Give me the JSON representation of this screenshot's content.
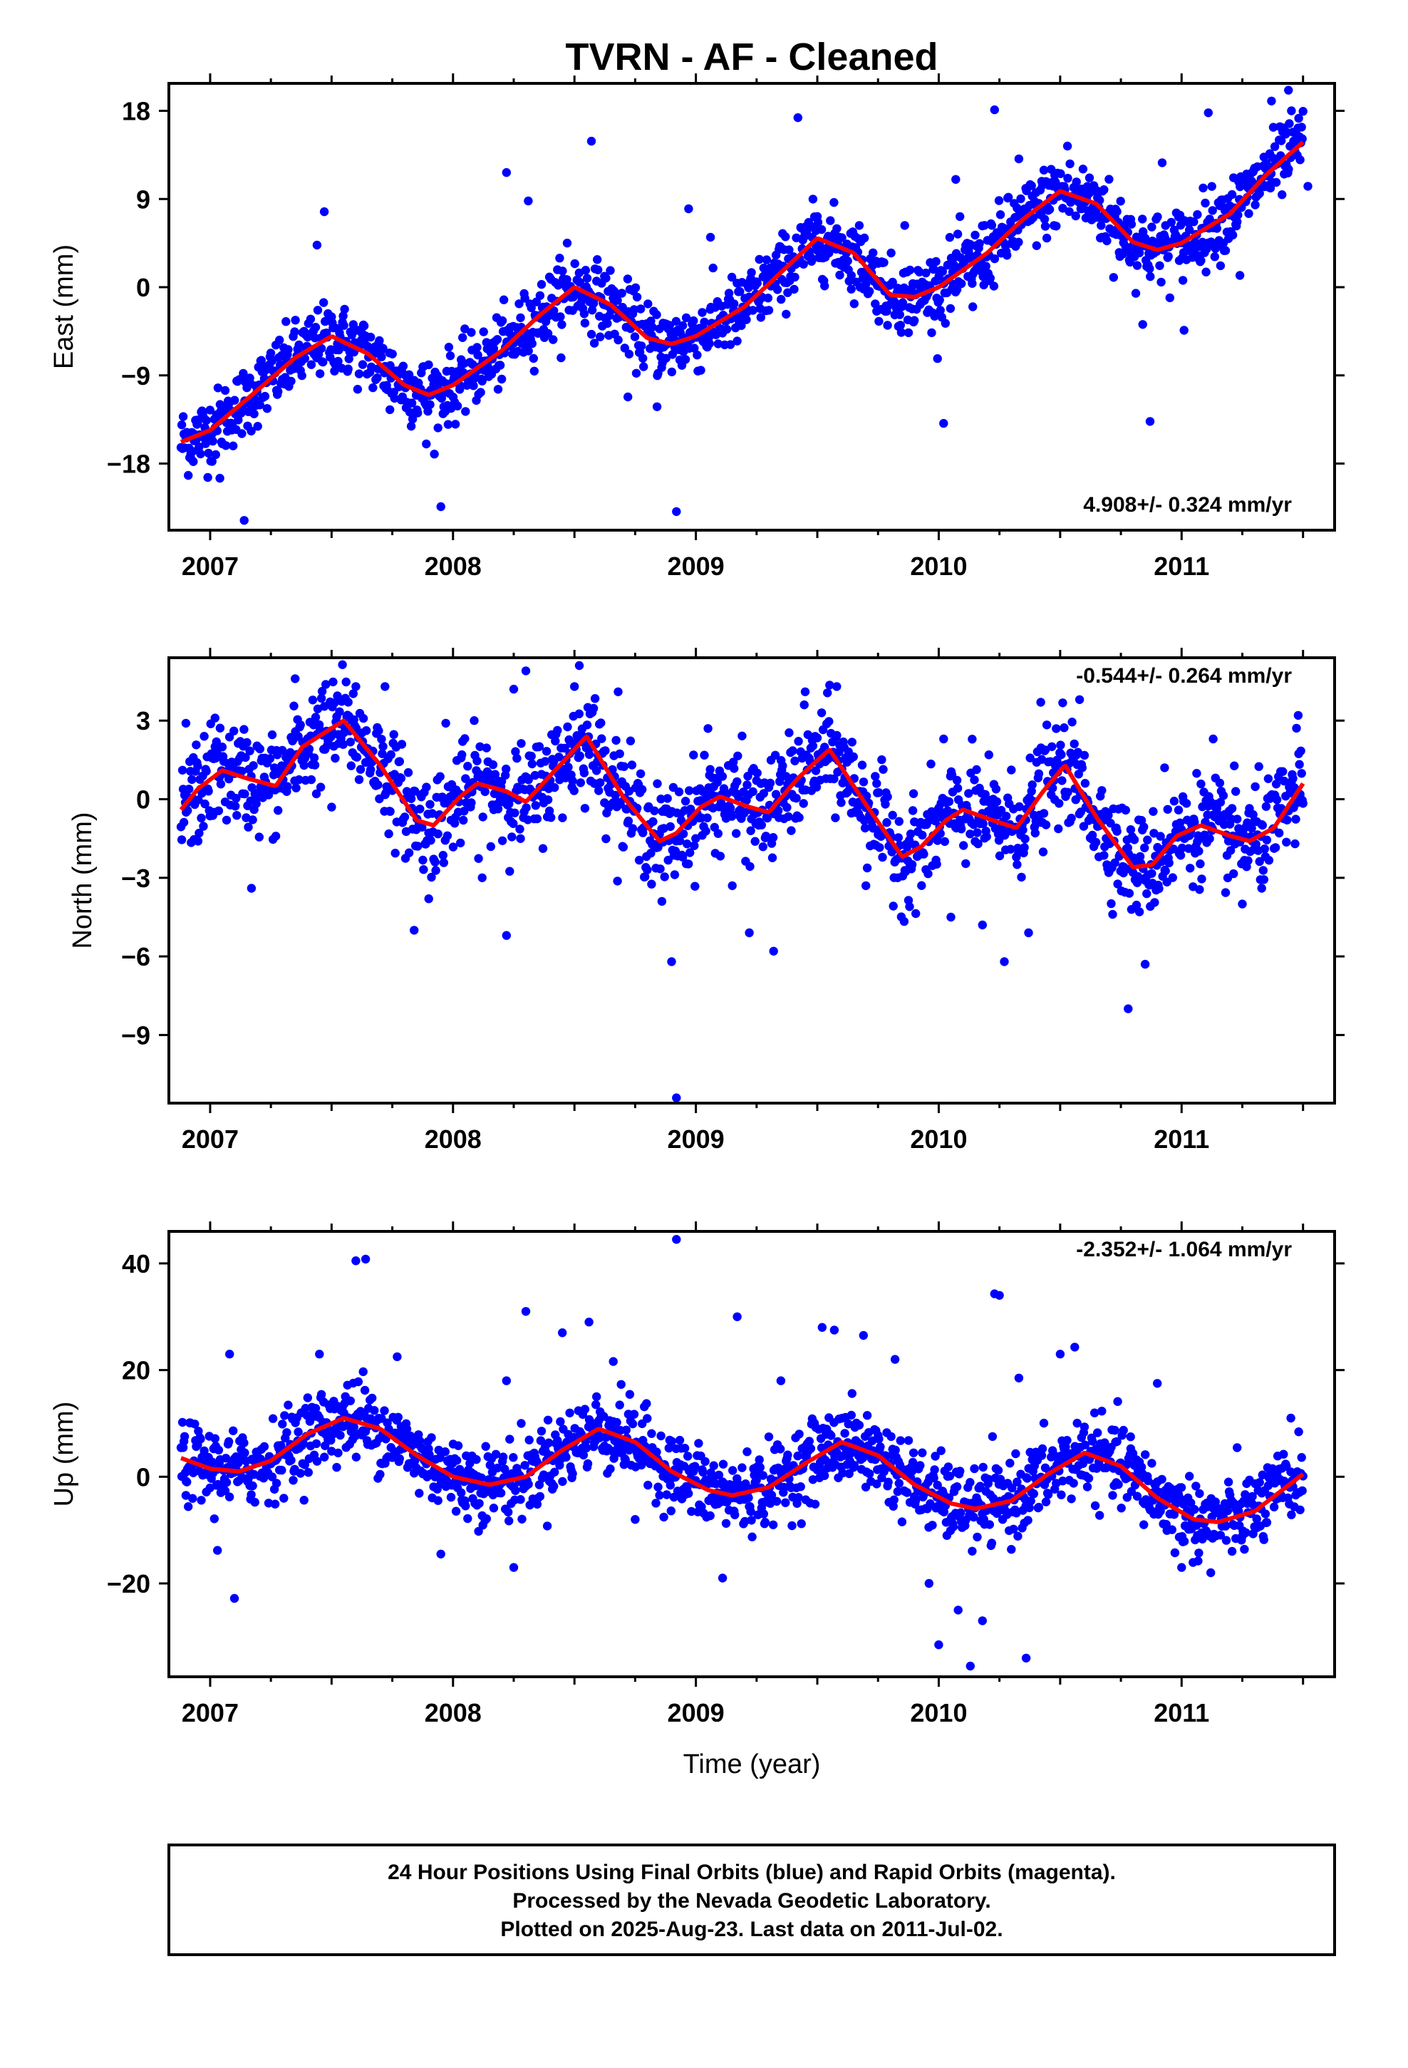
{
  "title": "TVRN  - AF - Cleaned",
  "xlabel": "Time (year)",
  "footer": [
    "24 Hour Positions Using Final Orbits (blue) and Rapid Orbits (magenta).",
    "Processed by the Nevada Geodetic Laboratory.",
    "Plotted on 2025-Aug-23. Last data on 2011-Jul-02."
  ],
  "chart_data": [
    {
      "type": "scatter",
      "ylabel": "East (mm)",
      "rate": "4.908+/- 0.324 mm/yr",
      "rate_position": "bottom-right",
      "xlim": [
        2006.83,
        2011.63
      ],
      "ylim": [
        -24.8,
        20.8
      ],
      "yticks": [
        18,
        9,
        0,
        -9,
        -18
      ],
      "xticks": [
        2007,
        2008,
        2009,
        2010,
        2011
      ],
      "first_epoch": 2006.88,
      "last_epoch": 2011.5,
      "model": {
        "color": "#ff0000",
        "points": [
          [
            2006.88,
            -15.8
          ],
          [
            2007.0,
            -14.6
          ],
          [
            2007.2,
            -10.4
          ],
          [
            2007.35,
            -7.2
          ],
          [
            2007.5,
            -5.0
          ],
          [
            2007.65,
            -6.8
          ],
          [
            2007.8,
            -10.0
          ],
          [
            2007.9,
            -11.0
          ],
          [
            2008.0,
            -10.0
          ],
          [
            2008.2,
            -6.5
          ],
          [
            2008.35,
            -3.0
          ],
          [
            2008.5,
            0.0
          ],
          [
            2008.65,
            -1.8
          ],
          [
            2008.8,
            -5.2
          ],
          [
            2008.9,
            -5.8
          ],
          [
            2009.0,
            -5.0
          ],
          [
            2009.2,
            -2.0
          ],
          [
            2009.35,
            1.5
          ],
          [
            2009.5,
            5.0
          ],
          [
            2009.65,
            3.5
          ],
          [
            2009.8,
            -0.8
          ],
          [
            2009.9,
            -1.0
          ],
          [
            2010.0,
            0.0
          ],
          [
            2010.2,
            3.5
          ],
          [
            2010.35,
            7.0
          ],
          [
            2010.5,
            9.8
          ],
          [
            2010.65,
            8.5
          ],
          [
            2010.8,
            4.6
          ],
          [
            2010.9,
            3.8
          ],
          [
            2011.0,
            4.5
          ],
          [
            2011.2,
            7.5
          ],
          [
            2011.35,
            11.5
          ],
          [
            2011.5,
            14.8
          ]
        ]
      },
      "series": [
        {
          "name": "Final Orbits",
          "color": "#0000ff",
          "scatter": 1.8,
          "outliers": [
            [
              2006.92,
              -17.0
            ],
            [
              2007.04,
              -19.5
            ],
            [
              2007.14,
              -23.8
            ],
            [
              2007.47,
              7.7
            ],
            [
              2007.44,
              4.3
            ],
            [
              2007.74,
              -12.5
            ],
            [
              2007.89,
              -16.0
            ],
            [
              2007.95,
              -22.4
            ],
            [
              2008.22,
              11.7
            ],
            [
              2008.31,
              8.8
            ],
            [
              2008.47,
              4.5
            ],
            [
              2008.57,
              14.9
            ],
            [
              2008.72,
              -11.2
            ],
            [
              2008.84,
              -12.2
            ],
            [
              2008.92,
              -22.9
            ],
            [
              2008.97,
              8.0
            ],
            [
              2009.06,
              5.1
            ],
            [
              2009.17,
              -5.5
            ],
            [
              2009.42,
              17.3
            ],
            [
              2009.64,
              -0.2
            ],
            [
              2009.86,
              6.3
            ],
            [
              2010.02,
              -13.9
            ],
            [
              2010.07,
              11.0
            ],
            [
              2010.14,
              -2.0
            ],
            [
              2010.23,
              18.1
            ],
            [
              2010.33,
              13.1
            ],
            [
              2010.53,
              14.4
            ],
            [
              2010.72,
              1.0
            ],
            [
              2010.84,
              -3.8
            ],
            [
              2010.87,
              -13.7
            ],
            [
              2010.92,
              12.7
            ],
            [
              2011.01,
              -4.4
            ],
            [
              2011.11,
              17.8
            ],
            [
              2011.24,
              1.2
            ],
            [
              2011.37,
              19.0
            ],
            [
              2011.44,
              20.1
            ],
            [
              2011.52,
              10.3
            ]
          ]
        }
      ]
    },
    {
      "type": "scatter",
      "ylabel": "North (mm)",
      "rate": "-0.544+/- 0.264 mm/yr",
      "rate_position": "top-right",
      "xlim": [
        2006.83,
        2011.63
      ],
      "ylim": [
        -11.6,
        5.4
      ],
      "yticks": [
        3,
        0,
        -3,
        -6,
        -9
      ],
      "xticks": [
        2007,
        2008,
        2009,
        2010,
        2011
      ],
      "first_epoch": 2006.88,
      "last_epoch": 2011.5,
      "model": {
        "color": "#ff0000",
        "points": [
          [
            2006.88,
            -0.4
          ],
          [
            2006.95,
            0.4
          ],
          [
            2007.05,
            1.1
          ],
          [
            2007.15,
            0.8
          ],
          [
            2007.27,
            0.5
          ],
          [
            2007.38,
            2.0
          ],
          [
            2007.55,
            3.0
          ],
          [
            2007.7,
            1.3
          ],
          [
            2007.85,
            -0.8
          ],
          [
            2007.92,
            -1.0
          ],
          [
            2008.03,
            0.1
          ],
          [
            2008.1,
            0.6
          ],
          [
            2008.22,
            0.3
          ],
          [
            2008.3,
            -0.1
          ],
          [
            2008.4,
            0.9
          ],
          [
            2008.55,
            2.4
          ],
          [
            2008.7,
            0.1
          ],
          [
            2008.85,
            -1.6
          ],
          [
            2008.92,
            -1.3
          ],
          [
            2009.02,
            -0.3
          ],
          [
            2009.1,
            0.1
          ],
          [
            2009.22,
            -0.3
          ],
          [
            2009.3,
            -0.5
          ],
          [
            2009.42,
            0.8
          ],
          [
            2009.55,
            1.9
          ],
          [
            2009.7,
            -0.2
          ],
          [
            2009.85,
            -2.2
          ],
          [
            2009.93,
            -1.8
          ],
          [
            2010.03,
            -0.8
          ],
          [
            2010.1,
            -0.4
          ],
          [
            2010.22,
            -0.8
          ],
          [
            2010.32,
            -1.1
          ],
          [
            2010.43,
            0.3
          ],
          [
            2010.52,
            1.3
          ],
          [
            2010.65,
            -0.7
          ],
          [
            2010.8,
            -2.6
          ],
          [
            2010.88,
            -2.5
          ],
          [
            2010.98,
            -1.4
          ],
          [
            2011.08,
            -1.0
          ],
          [
            2011.2,
            -1.4
          ],
          [
            2011.28,
            -1.6
          ],
          [
            2011.38,
            -1.1
          ],
          [
            2011.5,
            0.6
          ]
        ]
      },
      "series": [
        {
          "name": "Final Orbits",
          "color": "#0000ff",
          "scatter": 0.95,
          "outliers": [
            [
              2006.9,
              2.9
            ],
            [
              2006.95,
              -1.6
            ],
            [
              2007.02,
              3.1
            ],
            [
              2007.17,
              -3.4
            ],
            [
              2007.35,
              4.6
            ],
            [
              2007.5,
              -0.3
            ],
            [
              2007.6,
              4.3
            ],
            [
              2007.72,
              4.3
            ],
            [
              2007.84,
              -5.0
            ],
            [
              2007.9,
              -3.8
            ],
            [
              2007.97,
              2.9
            ],
            [
              2008.12,
              -3.0
            ],
            [
              2008.22,
              -5.2
            ],
            [
              2008.25,
              4.2
            ],
            [
              2008.3,
              4.9
            ],
            [
              2008.52,
              5.1
            ],
            [
              2008.5,
              4.3
            ],
            [
              2008.68,
              4.1
            ],
            [
              2008.86,
              -3.9
            ],
            [
              2008.9,
              -6.2
            ],
            [
              2008.92,
              -11.4
            ],
            [
              2009.05,
              2.7
            ],
            [
              2009.15,
              -3.3
            ],
            [
              2009.22,
              -5.1
            ],
            [
              2009.32,
              -5.8
            ],
            [
              2009.45,
              4.1
            ],
            [
              2009.58,
              4.3
            ],
            [
              2009.7,
              -3.3
            ],
            [
              2009.88,
              -4.1
            ],
            [
              2010.02,
              2.3
            ],
            [
              2010.05,
              -4.5
            ],
            [
              2010.18,
              -4.8
            ],
            [
              2010.27,
              -6.2
            ],
            [
              2010.37,
              -5.1
            ],
            [
              2010.42,
              3.7
            ],
            [
              2010.58,
              3.8
            ],
            [
              2010.7,
              -2.8
            ],
            [
              2010.78,
              -8.0
            ],
            [
              2010.85,
              -6.3
            ],
            [
              2010.93,
              1.2
            ],
            [
              2011.13,
              2.3
            ],
            [
              2011.25,
              -4.0
            ],
            [
              2011.33,
              -3.4
            ],
            [
              2011.48,
              3.2
            ]
          ]
        }
      ]
    },
    {
      "type": "scatter",
      "ylabel": "Up (mm)",
      "rate": "-2.352+/- 1.064 mm/yr",
      "rate_position": "top-right",
      "xlim": [
        2006.83,
        2011.63
      ],
      "ylim": [
        -37.5,
        46.0
      ],
      "yticks": [
        40,
        20,
        0,
        -20
      ],
      "xticks": [
        2007,
        2008,
        2009,
        2010,
        2011
      ],
      "first_epoch": 2006.88,
      "last_epoch": 2011.5,
      "model": {
        "color": "#ff0000",
        "points": [
          [
            2006.88,
            3.5
          ],
          [
            2007.0,
            1.5
          ],
          [
            2007.12,
            1.0
          ],
          [
            2007.25,
            3.0
          ],
          [
            2007.4,
            8.0
          ],
          [
            2007.55,
            11.0
          ],
          [
            2007.7,
            9.0
          ],
          [
            2007.85,
            4.0
          ],
          [
            2008.0,
            0.0
          ],
          [
            2008.15,
            -1.5
          ],
          [
            2008.3,
            0.0
          ],
          [
            2008.45,
            5.0
          ],
          [
            2008.6,
            9.0
          ],
          [
            2008.75,
            6.5
          ],
          [
            2008.9,
            1.0
          ],
          [
            2009.05,
            -2.5
          ],
          [
            2009.15,
            -3.5
          ],
          [
            2009.3,
            -2.0
          ],
          [
            2009.45,
            2.5
          ],
          [
            2009.6,
            6.5
          ],
          [
            2009.75,
            4.0
          ],
          [
            2009.9,
            -1.5
          ],
          [
            2010.05,
            -5.0
          ],
          [
            2010.15,
            -6.0
          ],
          [
            2010.3,
            -4.5
          ],
          [
            2010.45,
            0.5
          ],
          [
            2010.6,
            4.5
          ],
          [
            2010.75,
            2.0
          ],
          [
            2010.9,
            -4.0
          ],
          [
            2011.05,
            -8.0
          ],
          [
            2011.15,
            -8.5
          ],
          [
            2011.3,
            -6.5
          ],
          [
            2011.5,
            0.5
          ]
        ]
      },
      "series": [
        {
          "name": "Final Orbits",
          "color": "#0000ff",
          "scatter": 3.6,
          "outliers": [
            [
              2006.9,
              -3.5
            ],
            [
              2007.03,
              -13.8
            ],
            [
              2007.1,
              -22.8
            ],
            [
              2007.08,
              23.0
            ],
            [
              2007.45,
              23.0
            ],
            [
              2007.6,
              40.5
            ],
            [
              2007.64,
              40.8
            ],
            [
              2007.63,
              19.7
            ],
            [
              2007.77,
              22.5
            ],
            [
              2007.95,
              -14.5
            ],
            [
              2008.22,
              18.0
            ],
            [
              2008.25,
              -17.0
            ],
            [
              2008.3,
              31.0
            ],
            [
              2008.45,
              27.0
            ],
            [
              2008.56,
              29.0
            ],
            [
              2008.66,
              21.6
            ],
            [
              2008.75,
              -8.0
            ],
            [
              2008.92,
              44.5
            ],
            [
              2009.11,
              -19.0
            ],
            [
              2009.17,
              30.0
            ],
            [
              2009.35,
              18.0
            ],
            [
              2009.52,
              28.0
            ],
            [
              2009.57,
              27.5
            ],
            [
              2009.69,
              26.5
            ],
            [
              2009.82,
              22.0
            ],
            [
              2009.96,
              -20.0
            ],
            [
              2010.0,
              -31.5
            ],
            [
              2010.08,
              -25.0
            ],
            [
              2010.13,
              -35.5
            ],
            [
              2010.18,
              -27.0
            ],
            [
              2010.23,
              34.3
            ],
            [
              2010.25,
              34.0
            ],
            [
              2010.33,
              18.5
            ],
            [
              2010.36,
              -34.0
            ],
            [
              2010.5,
              23.0
            ],
            [
              2010.56,
              24.3
            ],
            [
              2010.79,
              7.5
            ],
            [
              2010.9,
              17.5
            ],
            [
              2011.0,
              -17.0
            ],
            [
              2011.12,
              -18.0
            ],
            [
              2011.45,
              11.0
            ]
          ]
        }
      ]
    }
  ]
}
